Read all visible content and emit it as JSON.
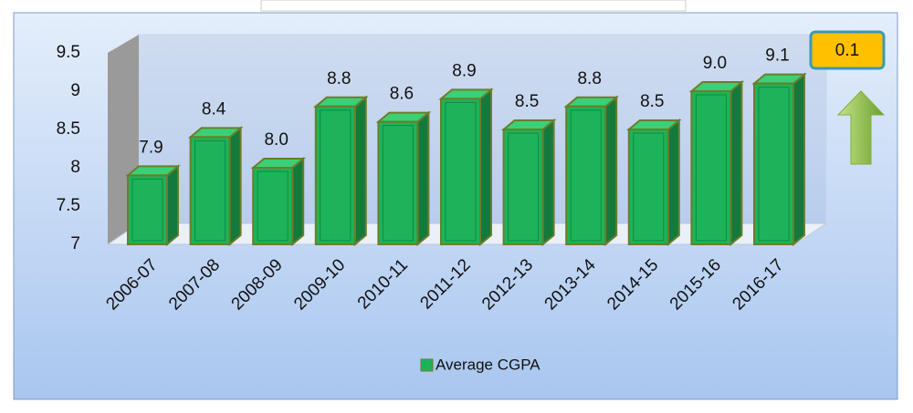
{
  "chart_data": {
    "type": "bar",
    "categories": [
      "2006-07",
      "2007-08",
      "2008-09",
      "2009-10",
      "2010-11",
      "2011-12",
      "2012-13",
      "2013-14",
      "2014-15",
      "2015-16",
      "2016-17"
    ],
    "series": [
      {
        "name": "Average CGPA",
        "color": "#1db35a",
        "values": [
          7.9,
          8.4,
          8.0,
          8.8,
          8.6,
          8.9,
          8.5,
          8.8,
          8.5,
          9.0,
          9.1
        ],
        "value_labels": [
          "7.9",
          "8.4",
          "8.0",
          "8.8",
          "8.6",
          "8.9",
          "8.5",
          "8.8",
          "8.5",
          "9.0",
          "9.1"
        ]
      }
    ],
    "ylim": [
      7,
      9.5
    ],
    "yticks": [
      7,
      7.5,
      8,
      8.5,
      9,
      9.5
    ],
    "annotation": "0.1",
    "legend": "bottom"
  }
}
